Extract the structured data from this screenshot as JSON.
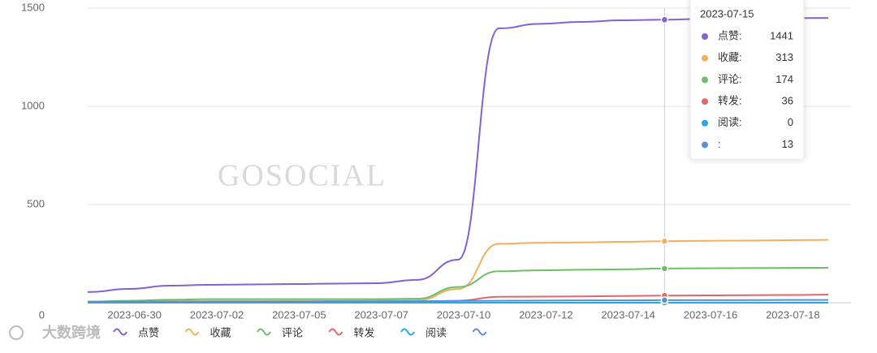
{
  "chart_data": {
    "type": "line",
    "watermark": "GOSOCIAL",
    "logo": "大数跨境",
    "categories": [
      null,
      "2023-06-30",
      null,
      "2023-07-02",
      null,
      "2023-07-05",
      null,
      "2023-07-07",
      null,
      "2023-07-10",
      null,
      "2023-07-12",
      null,
      "2023-07-14",
      null,
      "2023-07-16",
      null,
      "2023-07-18",
      null
    ],
    "series": [
      {
        "name": "点赞",
        "color": "#8560d8",
        "values": [
          54,
          70,
          87,
          91,
          93,
          95,
          97,
          99,
          116,
          219,
          1397,
          1420,
          1430,
          1438,
          1441,
          1445,
          1447,
          1449,
          1450
        ]
      },
      {
        "name": "收藏",
        "color": "#f4ae5c",
        "values": [
          5,
          6,
          7,
          8,
          8,
          9,
          9,
          10,
          12,
          70,
          300,
          305,
          307,
          310,
          313,
          315,
          316,
          318,
          320
        ]
      },
      {
        "name": "评论",
        "color": "#6cbf68",
        "values": [
          5,
          10,
          15,
          18,
          18,
          18,
          18,
          18,
          20,
          80,
          160,
          165,
          168,
          170,
          174,
          175,
          176,
          177,
          178
        ]
      },
      {
        "name": "转发",
        "color": "#e26868",
        "values": [
          3,
          3,
          3,
          3,
          3,
          3,
          3,
          3,
          4,
          10,
          30,
          31,
          32,
          34,
          36,
          37,
          38,
          39,
          41
        ]
      },
      {
        "name": "阅读",
        "color": "#2aa9e0",
        "values": [
          0,
          0,
          0,
          0,
          0,
          0,
          0,
          0,
          0,
          0,
          0,
          0,
          0,
          0,
          0,
          0,
          0,
          0,
          0
        ]
      },
      {
        "name": null,
        "color": "#5b8fd9",
        "values": [
          5,
          5,
          5,
          6,
          6,
          6,
          7,
          7,
          8,
          9,
          10,
          11,
          12,
          12,
          13,
          13,
          13,
          14,
          14
        ]
      }
    ],
    "ylim": [
      0,
      1500
    ],
    "yticks": [
      0,
      500,
      1000,
      1500
    ],
    "grid": true,
    "tooltip": {
      "title": "2023-07-15",
      "rows": [
        {
          "label": "点赞:",
          "value": 1441
        },
        {
          "label": "收藏:",
          "value": 313
        },
        {
          "label": "评论:",
          "value": 174
        },
        {
          "label": "转发:",
          "value": 36
        },
        {
          "label": "阅读:",
          "value": 0
        },
        {
          "label": ":",
          "value": 13
        }
      ]
    }
  }
}
